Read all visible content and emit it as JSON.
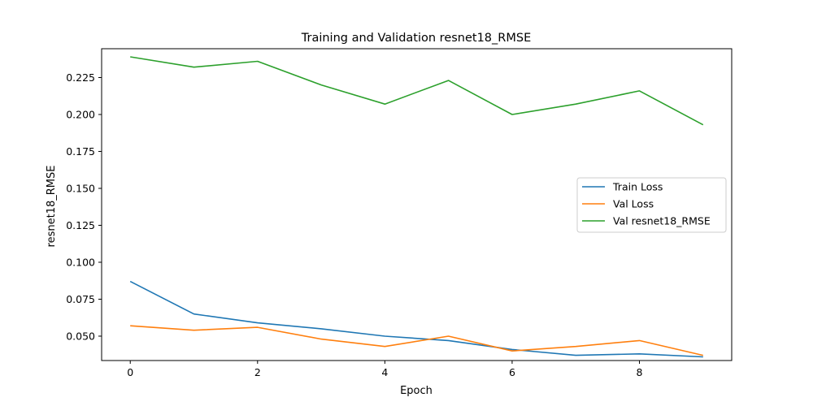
{
  "chart_data": {
    "type": "line",
    "title": "Training and Validation resnet18_RMSE",
    "xlabel": "Epoch",
    "ylabel": "resnet18_RMSE",
    "xlim": [
      -0.45,
      9.45
    ],
    "ylim": [
      0.0335,
      0.2445
    ],
    "x_ticks": [
      0,
      2,
      4,
      6,
      8
    ],
    "y_ticks": [
      0.05,
      0.075,
      0.1,
      0.125,
      0.15,
      0.175,
      0.2,
      0.225
    ],
    "y_tick_labels": [
      "0.050",
      "0.075",
      "0.100",
      "0.125",
      "0.150",
      "0.175",
      "0.200",
      "0.225"
    ],
    "x": [
      0,
      1,
      2,
      3,
      4,
      5,
      6,
      7,
      8,
      9
    ],
    "grid": false,
    "legend_position": "center-right",
    "series": [
      {
        "name": "Train Loss",
        "color": "#1f77b4",
        "values": [
          0.087,
          0.065,
          0.059,
          0.055,
          0.05,
          0.047,
          0.041,
          0.037,
          0.038,
          0.036
        ]
      },
      {
        "name": "Val Loss",
        "color": "#ff7f0e",
        "values": [
          0.057,
          0.054,
          0.056,
          0.048,
          0.043,
          0.05,
          0.04,
          0.043,
          0.047,
          0.037
        ]
      },
      {
        "name": "Val resnet18_RMSE",
        "color": "#2ca02c",
        "values": [
          0.239,
          0.232,
          0.236,
          0.22,
          0.207,
          0.223,
          0.2,
          0.207,
          0.216,
          0.193
        ]
      }
    ]
  }
}
